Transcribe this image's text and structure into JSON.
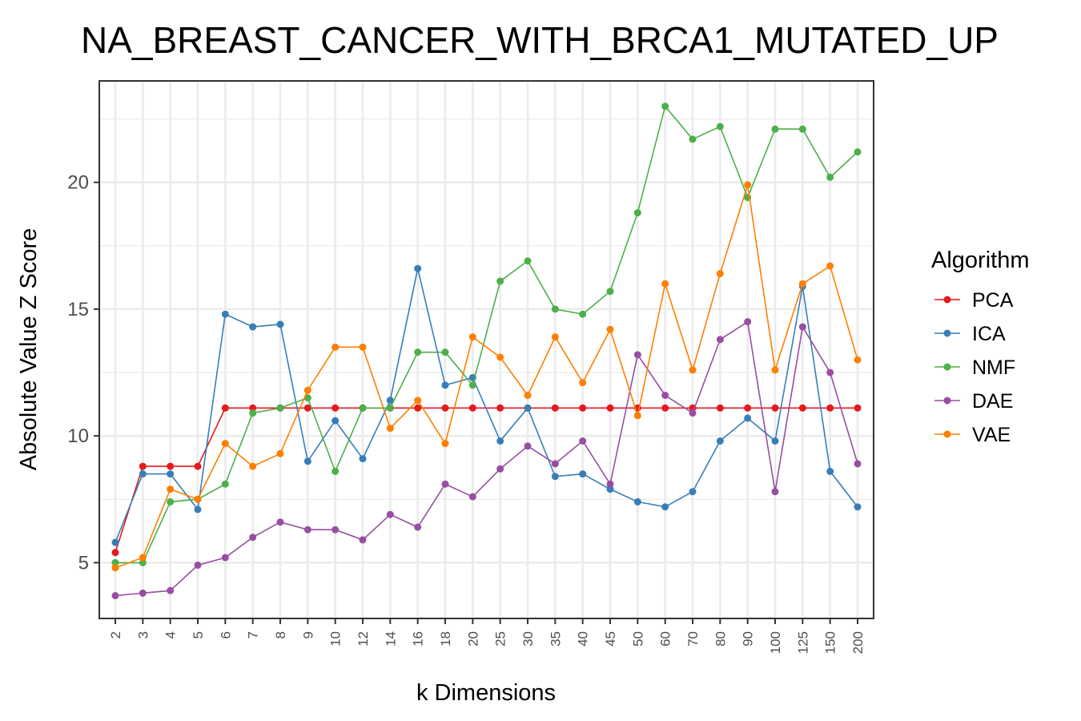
{
  "chart_data": {
    "type": "line",
    "title": "NA_BREAST_CANCER_WITH_BRCA1_MUTATED_UP",
    "xlabel": "k Dimensions",
    "ylabel": "Absolute Value Z Score",
    "categories": [
      "2",
      "3",
      "4",
      "5",
      "6",
      "7",
      "8",
      "9",
      "10",
      "12",
      "14",
      "16",
      "18",
      "20",
      "25",
      "30",
      "35",
      "40",
      "45",
      "50",
      "60",
      "70",
      "80",
      "90",
      "100",
      "125",
      "150",
      "200"
    ],
    "ylim": [
      2.8,
      24.0
    ],
    "yticks": [
      5,
      10,
      15,
      20
    ],
    "grid": true,
    "legend": {
      "title": "Algorithm",
      "position": "right"
    },
    "series": [
      {
        "name": "PCA",
        "color": "#e41a1c",
        "values": [
          5.4,
          8.8,
          8.8,
          8.8,
          11.1,
          11.1,
          11.1,
          11.1,
          11.1,
          11.1,
          11.1,
          11.1,
          11.1,
          11.1,
          11.1,
          11.1,
          11.1,
          11.1,
          11.1,
          11.1,
          11.1,
          11.1,
          11.1,
          11.1,
          11.1,
          11.1,
          11.1,
          11.1
        ]
      },
      {
        "name": "ICA",
        "color": "#377eb8",
        "values": [
          5.8,
          8.5,
          8.5,
          7.1,
          14.8,
          14.3,
          14.4,
          9.0,
          10.6,
          9.1,
          11.4,
          16.6,
          12.0,
          12.3,
          9.8,
          11.1,
          8.4,
          8.5,
          7.9,
          7.4,
          7.2,
          7.8,
          9.8,
          10.7,
          9.8,
          15.9,
          8.6,
          7.2
        ]
      },
      {
        "name": "NMF",
        "color": "#4daf4a",
        "values": [
          5.0,
          5.0,
          7.4,
          7.5,
          8.1,
          10.9,
          11.1,
          11.5,
          8.6,
          11.1,
          11.1,
          13.3,
          13.3,
          12.0,
          16.1,
          16.9,
          15.0,
          14.8,
          15.7,
          18.8,
          23.0,
          21.7,
          22.2,
          19.4,
          22.1,
          22.1,
          20.2,
          21.2
        ]
      },
      {
        "name": "DAE",
        "color": "#984ea3",
        "values": [
          3.7,
          3.8,
          3.9,
          4.9,
          5.2,
          6.0,
          6.6,
          6.3,
          6.3,
          5.9,
          6.9,
          6.4,
          8.1,
          7.6,
          8.7,
          9.6,
          8.9,
          9.8,
          8.1,
          13.2,
          11.6,
          10.9,
          13.8,
          14.5,
          7.8,
          14.3,
          12.5,
          8.9
        ]
      },
      {
        "name": "VAE",
        "color": "#ff7f00",
        "values": [
          4.8,
          5.2,
          7.9,
          7.5,
          9.7,
          8.8,
          9.3,
          11.8,
          13.5,
          13.5,
          10.3,
          11.4,
          9.7,
          13.9,
          13.1,
          11.6,
          13.9,
          12.1,
          14.2,
          10.8,
          16.0,
          12.6,
          16.4,
          19.9,
          12.6,
          16.0,
          16.7,
          13.0
        ]
      }
    ]
  }
}
